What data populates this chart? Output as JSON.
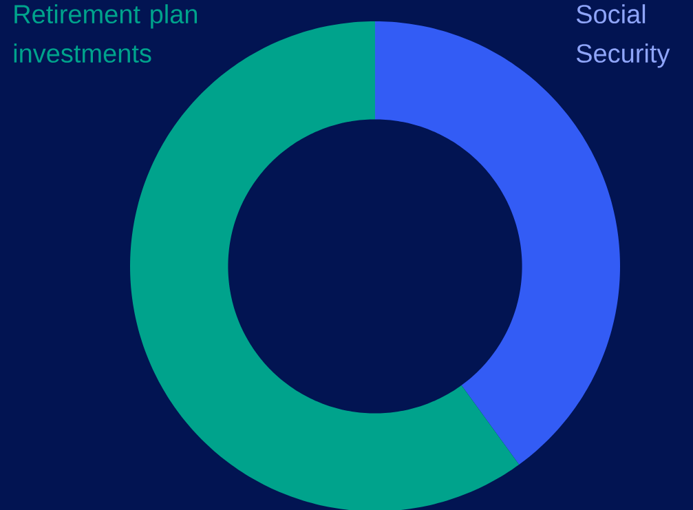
{
  "chart_data": {
    "type": "donut",
    "categories": [
      "Social Security",
      "Retirement plan investments"
    ],
    "values": [
      40,
      60
    ],
    "colors": [
      "#335cf5",
      "#00a38c"
    ]
  }
}
